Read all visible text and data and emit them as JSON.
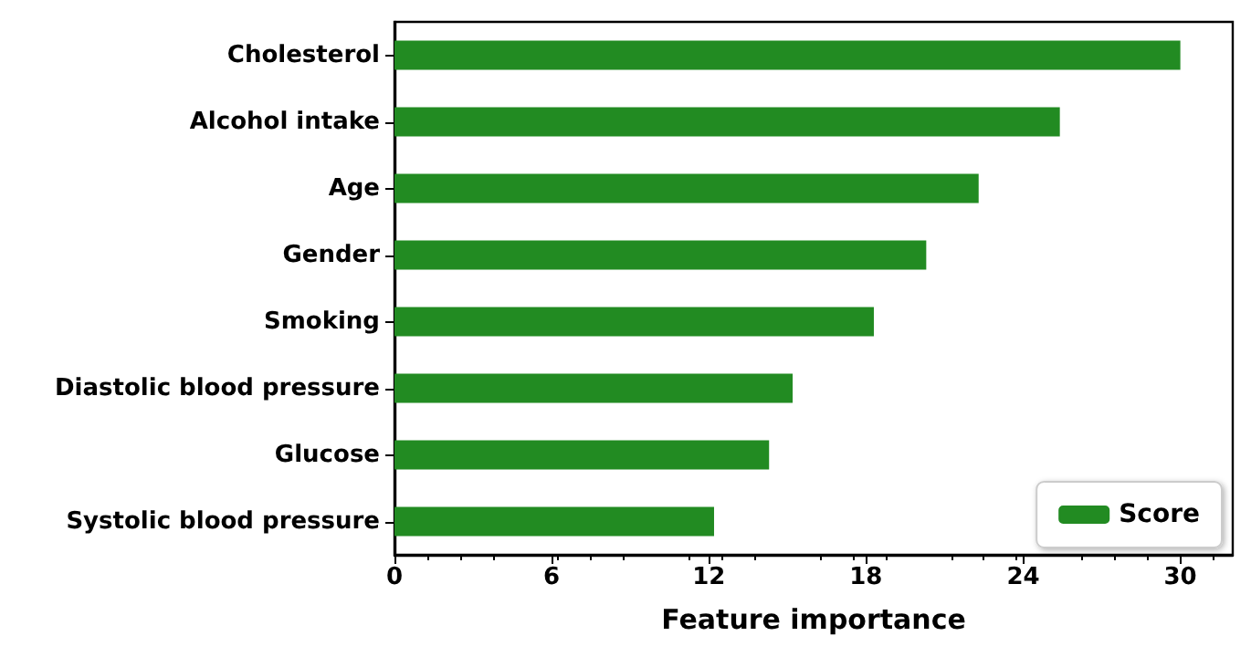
{
  "chart_data": {
    "type": "bar",
    "orientation": "horizontal",
    "xlabel": "Feature importance",
    "categories": [
      "Cholesterol",
      "Alcohol intake",
      "Age",
      "Gender",
      "Smoking",
      "Diastolic blood pressure",
      "Glucose",
      "Systolic blood pressure"
    ],
    "series": [
      {
        "name": "Score",
        "color": "#228b22",
        "values": [
          30.0,
          25.4,
          22.3,
          20.3,
          18.3,
          15.2,
          14.3,
          12.2
        ]
      }
    ],
    "xlim": [
      0,
      32
    ],
    "xticks": [
      0,
      6,
      12,
      18,
      24,
      30
    ],
    "grid": false,
    "legend": "bottom right"
  }
}
